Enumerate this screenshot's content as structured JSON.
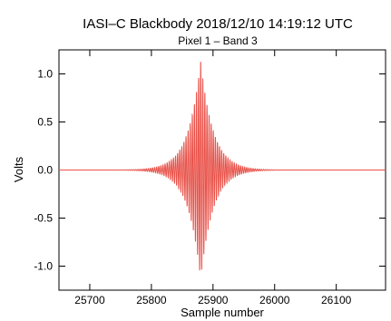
{
  "chart_data": {
    "type": "line",
    "title": "IASI–C Blackbody  2018/12/10 14:19:12 UTC",
    "subtitle": "Pixel  1 – Band  3",
    "xlabel": "Sample number",
    "ylabel": "Volts",
    "xlim": [
      25650,
      26180
    ],
    "ylim": [
      -1.25,
      1.25
    ],
    "x_ticks": [
      25700,
      25800,
      25900,
      26000,
      26100
    ],
    "y_ticks": [
      1.0,
      0.5,
      0.0,
      -0.5,
      -1.0
    ],
    "y_tick_labels": [
      "1.0",
      "0.5",
      "0.0",
      "-0.5",
      "-1.0"
    ],
    "grid": false,
    "series": [
      {
        "color": "#e8524a",
        "peak_sample": 25880,
        "peak_value": 1.13,
        "min_value": -1.14,
        "samples_per_cycle": 3.4,
        "envelope_decay_samples": 20,
        "x_range": [
          25650,
          26180
        ]
      }
    ]
  }
}
